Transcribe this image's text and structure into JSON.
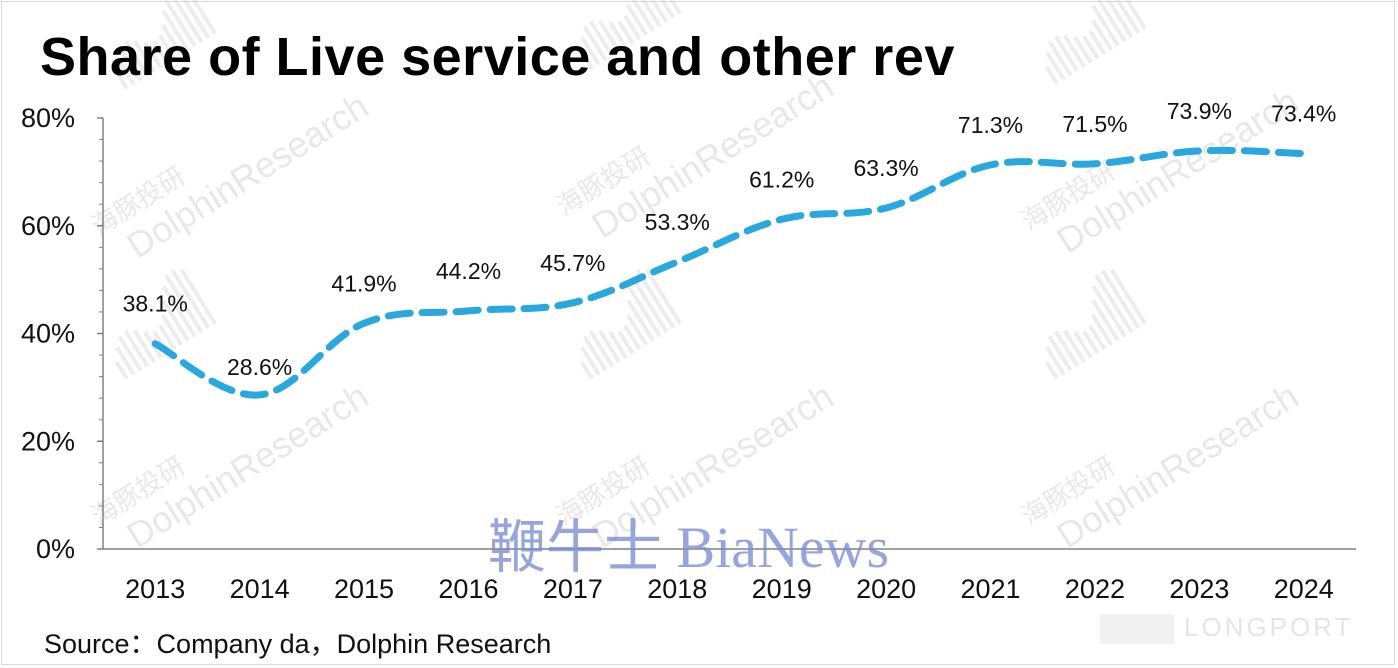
{
  "title": "Share of Live service and other rev",
  "source": "Source：Company da，Dolphin Research",
  "watermarks": {
    "dolphin_cn": "海豚投研",
    "dolphin_en": "DolphinResearch",
    "bianews": "鞭牛士 BiaNews",
    "longport": "LONGPORT"
  },
  "colors": {
    "line": "#29a8e0",
    "axis": "#808080",
    "text": "#111111"
  },
  "chart_data": {
    "type": "line",
    "title": "Share of Live service and other rev",
    "x": [
      "2013",
      "2014",
      "2015",
      "2016",
      "2017",
      "2018",
      "2019",
      "2020",
      "2021",
      "2022",
      "2023",
      "2024"
    ],
    "series": [
      {
        "values": [
          38.1,
          28.6,
          41.9,
          44.2,
          45.7,
          53.3,
          61.2,
          63.3,
          71.3,
          71.5,
          73.9,
          73.4
        ],
        "labels": [
          "38.1%",
          "28.6%",
          "41.9%",
          "44.2%",
          "45.7%",
          "53.3%",
          "61.2%",
          "63.3%",
          "71.3%",
          "71.5%",
          "73.9%",
          "73.4%"
        ],
        "style": "dashed smooth"
      }
    ],
    "y_ticks": [
      "0%",
      "20%",
      "40%",
      "60%",
      "80%"
    ],
    "ylim": [
      0,
      80
    ],
    "grid": false,
    "legend": "none"
  }
}
